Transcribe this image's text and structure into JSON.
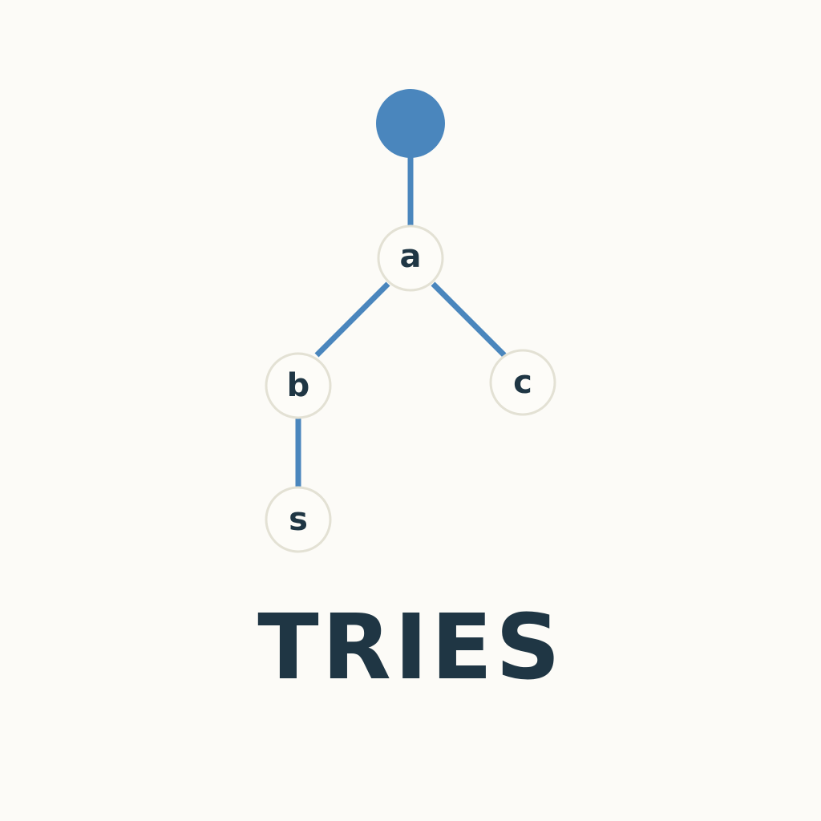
{
  "diagram": {
    "title": "TRIES",
    "colors": {
      "edge": "#4a86bd",
      "root": "#4a86bd",
      "node_fill": "#fdfcf8",
      "node_border": "#e3e1d4",
      "text": "#1f3644",
      "background": "#fcfbf7"
    },
    "nodes": [
      {
        "id": "root",
        "label": ""
      },
      {
        "id": "a",
        "label": "a"
      },
      {
        "id": "b",
        "label": "b"
      },
      {
        "id": "c",
        "label": "c"
      },
      {
        "id": "s",
        "label": "s"
      }
    ],
    "edges": [
      {
        "from": "root",
        "to": "a"
      },
      {
        "from": "a",
        "to": "b"
      },
      {
        "from": "a",
        "to": "c"
      },
      {
        "from": "b",
        "to": "s"
      }
    ]
  }
}
